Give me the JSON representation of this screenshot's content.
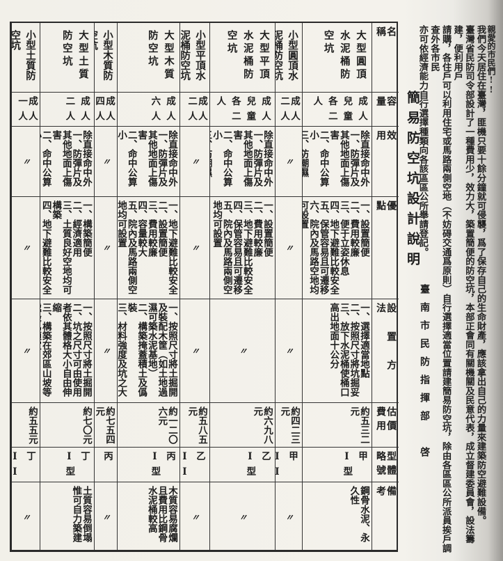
{
  "intro": {
    "lines": [
      "親愛的市民們!!",
      "我們今天居住在臺灣，匪機只要十餘分鐘就可侵襲，爲了保存自己的生命財產，應該拿出自己的力量來建築防空避難設備。",
      "臺灣省民防司令部設計了一種費用少，效力大，築置簡便的防空坑，本部正會同有關機關及民意代表，成立督建委員會，設法籌建，便利用戶",
      "請購，各住戶可以利用住宅或馬路兩側空地（不妨碍交通爲原則）自行選擇適當位置請建簡易防空坑，除由各區區公所派員挨戶調查外各市民",
      "亦可依經濟能力自行選擇種類向各該區區公所舉請登記。"
    ]
  },
  "title": "簡易防空坑設計說明",
  "signature": "臺南市民防指揮部　啓",
  "table": {
    "headers": [
      "名稱",
      "容量",
      "效用",
      "優點",
      "設置方法",
      "估價費用",
      "型體略號",
      "備考"
    ],
    "ditto": "〃",
    "columns": [
      {
        "name": "大型圓頂水泥桶防空坑",
        "capacity": "成人兒童各二人",
        "effect": [
          "除直接命中外",
          "一、防彈片及其他地面上傷害",
          "二、命中公算小",
          "三、防潮濕"
        ],
        "merits": [
          "一、設置簡便",
          "二、費用較廉",
          "三、便于立姿休息",
          "四、地下避難比較安全",
          "五、保管容易且可遷移",
          "六、院內及馬路空地均可設置"
        ],
        "method": [
          "一、選擇適當地點",
          "二、按照尺寸將坑掘妥",
          "三、放下水泥桶使桶口高出地面十公分"
        ],
        "cost": "約五三二元",
        "type": "甲 I型",
        "remark": [
          "鋼骨水泥、永久性"
        ]
      },
      {
        "name": "小型圓頂水泥桶防空坑",
        "capacity": "成人二人",
        "effect": null,
        "merits": null,
        "method": null,
        "cost": "約四二三元",
        "type": "甲 II型",
        "remark": null
      },
      {
        "name": "大型平頂水泥桶防空坑",
        "capacity": "成人兒童各二人",
        "effect": [
          "除直接命中外",
          "一、防彈片及其他地面上傷害",
          "二、命中公算小",
          "三、防潮濕",
          "四、防火灼",
          "五、防雨水"
        ],
        "merits": [
          "一、設置簡便",
          "二、費用較廉",
          "三、地下避難比較安全",
          "四、保管容易且可遷移",
          "五、院內及馬路兩側空地均可設置"
        ],
        "method": null,
        "cost": "約六九八元",
        "type": "乙 I型",
        "remark": null
      },
      {
        "name": "小型平頂水泥桶防空坑",
        "capacity": "成人二人",
        "effect": null,
        "merits": null,
        "method": null,
        "cost": "約五八五元",
        "type": "乙 II型",
        "remark": null
      },
      {
        "name": "大型木質防空坑",
        "capacity": "成人六人",
        "effect": [
          "除直接命中外",
          "一、防彈片及其他地面上傷害",
          "二、命中公算小",
          "三、防雨水"
        ],
        "merits": [
          "一、地下避難比較安全",
          "二、設置簡便",
          "三、費用較廉",
          "四、容量較大",
          "五、院內及馬路兩側空地均可設置"
        ],
        "method": [
          "一、按照尺寸將土掘開及裝配木筐（如土地過濕可築水泥基地）",
          "二、構築掩蓋積土及僞裝",
          "三、材料強度及坑之大小可由使用者依其環境與需要自由增減以期適用"
        ],
        "cost": "約一二〇六元",
        "type": "丙 I型",
        "remark": [
          "木質容易腐爛且費用比鋼骨水泥桶較高"
        ]
      },
      {
        "name": "小型木質防空坑",
        "capacity": "成人四人",
        "effect": null,
        "merits": null,
        "method": null,
        "cost": "約七五四元",
        "type": "丙 II型",
        "remark": null
      },
      {
        "name": "大型土質防空坑",
        "capacity": "成人二人",
        "effect": [
          "除直接命中外",
          "一、防彈片及其他地面上傷害",
          "二、命中公算小"
        ],
        "merits": [
          "一、構築簡便",
          "二、經濟適用",
          "三、土質良好空地均可構築",
          "四、地下避難比較安全"
        ],
        "method": [
          "一、按照尺寸將土掘開",
          "二、坑之尺寸可由使用者依其體格大小自由伸縮",
          "三、構築在郊區山坡等處最爲適宜"
        ],
        "cost": "約七〇元",
        "type": "丁 I型",
        "remark": [
          "土質容易倒塌惟可自力築建"
        ]
      },
      {
        "name": "小型土質防空坑",
        "capacity": "成人一人",
        "effect": null,
        "merits": null,
        "method": null,
        "cost": "約五五元",
        "type": "丁 II型",
        "remark": null
      }
    ]
  }
}
